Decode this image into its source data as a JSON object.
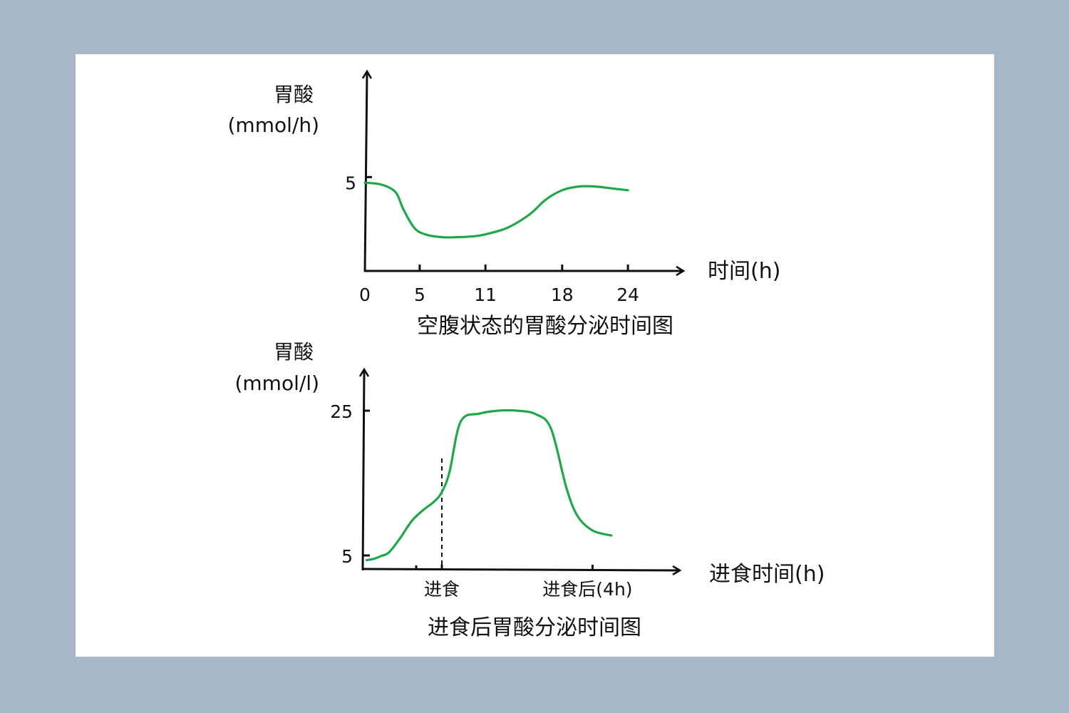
{
  "colors": {
    "background": "#a6b7c8",
    "card": "#ffffff",
    "axis": "#111111",
    "curve": "#1fa84a"
  },
  "chart_data": [
    {
      "type": "line",
      "title": "空腹状态的胃酸分泌时间图",
      "ylabel": [
        "胃酸",
        "(mmol/h)"
      ],
      "xlabel": "时间(h)",
      "xticks": [
        "0",
        "5",
        "11",
        "18",
        "24"
      ],
      "yticks": [
        "5"
      ],
      "xlim": [
        0,
        29
      ],
      "ylim": [
        0,
        10.6
      ],
      "grid": false,
      "series": [
        {
          "x": [
            0,
            1.5,
            2.8,
            3.5,
            4.5,
            5.5,
            7,
            8.5,
            10,
            11,
            13,
            15,
            16.5,
            18,
            19.5,
            21,
            22.5,
            24
          ],
          "y": [
            4.7,
            4.6,
            4.2,
            3.3,
            2.3,
            1.95,
            1.8,
            1.8,
            1.85,
            1.95,
            2.3,
            3.0,
            3.8,
            4.3,
            4.5,
            4.5,
            4.4,
            4.3
          ]
        }
      ]
    },
    {
      "type": "line",
      "title": "进食后胃酸分泌时间图",
      "ylabel": [
        "胃酸",
        "(mmol/l)"
      ],
      "xlabel": "进食时间(h)",
      "xticks": [
        "进食",
        "进食后(4h)"
      ],
      "yticks": [
        "5",
        "25"
      ],
      "xlim": [
        -2.1,
        6.3
      ],
      "ylim": [
        3,
        25
      ],
      "grid": false,
      "annotations": [
        {
          "type": "vline",
          "x": 0,
          "style": "dashed"
        }
      ],
      "series": [
        {
          "x": [
            -2.0,
            -1.8,
            -1.6,
            -1.4,
            -1.1,
            -0.8,
            -0.5,
            -0.2,
            0,
            0.2,
            0.5,
            1.0,
            1.5,
            2.0,
            2.5,
            2.9,
            3.3,
            3.6,
            4.0,
            4.5
          ],
          "y": [
            4.4,
            4.6,
            5.0,
            5.5,
            7.5,
            9.8,
            11.3,
            12.5,
            13.8,
            16.5,
            23.5,
            24.6,
            25.0,
            25.0,
            24.5,
            22.5,
            14.5,
            10.5,
            8.5,
            7.8
          ]
        }
      ]
    }
  ]
}
